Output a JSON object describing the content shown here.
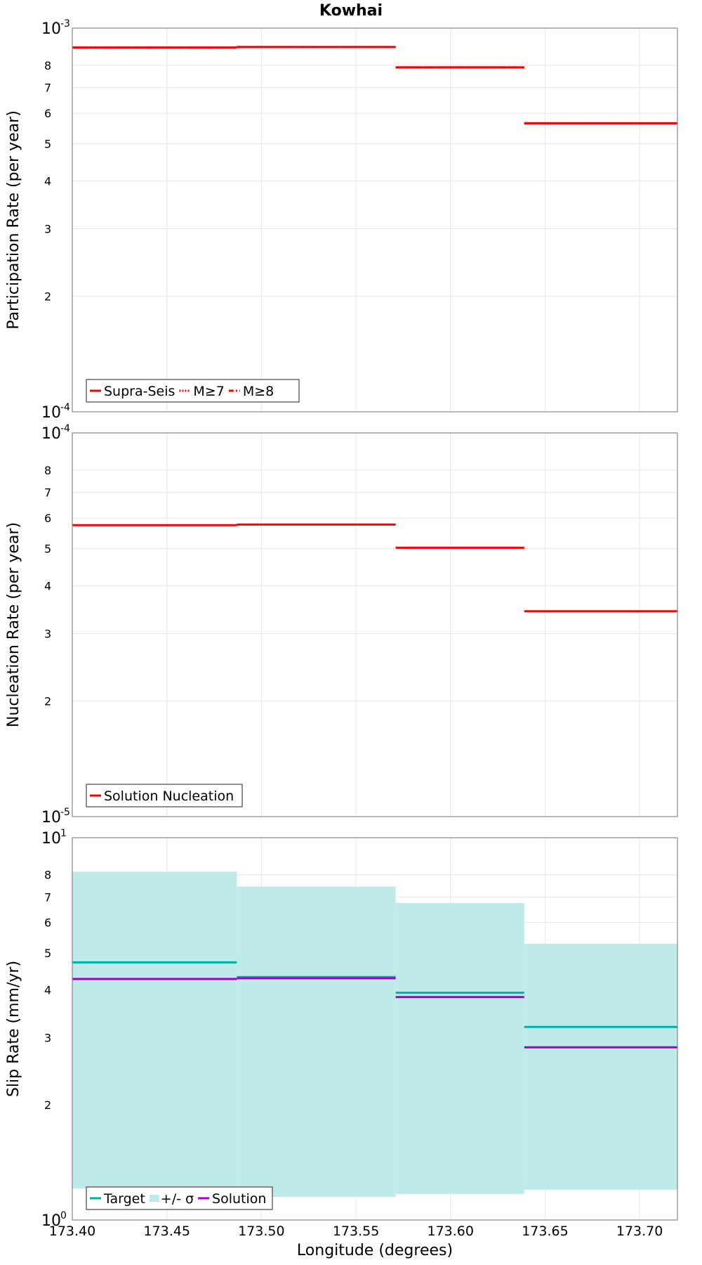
{
  "chart_data": [
    {
      "type": "line",
      "title": "Kowhai",
      "xlabel": "",
      "ylabel": "Participation Rate (per year)",
      "yscale": "log",
      "ylim": [
        0.0001,
        0.001
      ],
      "xlim": [
        173.4,
        173.72
      ],
      "grid": true,
      "legend_position": "bottom-left",
      "y_major_ticks": [
        {
          "value": 0.0001,
          "base": "10",
          "exp": "-4"
        },
        {
          "value": 0.001,
          "base": "10",
          "exp": "-3"
        }
      ],
      "y_minor_ticks": [
        {
          "value": 0.0002,
          "label": "2"
        },
        {
          "value": 0.0003,
          "label": "3"
        },
        {
          "value": 0.0004,
          "label": "4"
        },
        {
          "value": 0.0005,
          "label": "5"
        },
        {
          "value": 0.0006,
          "label": "6"
        },
        {
          "value": 0.0007,
          "label": "7"
        },
        {
          "value": 0.0008,
          "label": "8"
        }
      ],
      "series": [
        {
          "name": "Supra-Seis",
          "color": "#ff0000",
          "style": "solid",
          "segments": [
            {
              "x0": 173.4,
              "x1": 173.487,
              "y": 0.00089
            },
            {
              "x0": 173.487,
              "x1": 173.571,
              "y": 0.000893
            },
            {
              "x0": 173.571,
              "x1": 173.639,
              "y": 0.00079
            },
            {
              "x0": 173.639,
              "x1": 173.72,
              "y": 0.000565
            }
          ]
        },
        {
          "name": "M≥7",
          "color": "#ff0000",
          "style": "dotted",
          "segments": [
            {
              "x0": 173.4,
              "x1": 173.487,
              "y": 0.00089
            },
            {
              "x0": 173.487,
              "x1": 173.571,
              "y": 0.000893
            },
            {
              "x0": 173.571,
              "x1": 173.639,
              "y": 0.00079
            },
            {
              "x0": 173.639,
              "x1": 173.72,
              "y": 0.000565
            }
          ]
        },
        {
          "name": "M≥8",
          "color": "#ff0000",
          "style": "dashdot",
          "segments": [
            {
              "x0": 173.4,
              "x1": 173.487,
              "y": 0.00089
            },
            {
              "x0": 173.487,
              "x1": 173.571,
              "y": 0.000893
            },
            {
              "x0": 173.571,
              "x1": 173.639,
              "y": 0.00079
            },
            {
              "x0": 173.639,
              "x1": 173.72,
              "y": 0.000565
            }
          ]
        }
      ]
    },
    {
      "type": "line",
      "title": "",
      "xlabel": "",
      "ylabel": "Nucleation Rate (per year)",
      "yscale": "log",
      "ylim": [
        1e-05,
        0.0001
      ],
      "xlim": [
        173.4,
        173.72
      ],
      "grid": true,
      "legend_position": "bottom-left",
      "y_major_ticks": [
        {
          "value": 1e-05,
          "base": "10",
          "exp": "-5"
        },
        {
          "value": 0.0001,
          "base": "10",
          "exp": "-4"
        }
      ],
      "y_minor_ticks": [
        {
          "value": 2e-05,
          "label": "2"
        },
        {
          "value": 3e-05,
          "label": "3"
        },
        {
          "value": 4e-05,
          "label": "4"
        },
        {
          "value": 5e-05,
          "label": "5"
        },
        {
          "value": 6e-05,
          "label": "6"
        },
        {
          "value": 7e-05,
          "label": "7"
        },
        {
          "value": 8e-05,
          "label": "8"
        }
      ],
      "series": [
        {
          "name": "Solution Nucleation",
          "color": "#ff0000",
          "style": "solid",
          "segments": [
            {
              "x0": 173.4,
              "x1": 173.487,
              "y": 5.75e-05
            },
            {
              "x0": 173.487,
              "x1": 173.571,
              "y": 5.77e-05
            },
            {
              "x0": 173.571,
              "x1": 173.639,
              "y": 5.02e-05
            },
            {
              "x0": 173.639,
              "x1": 173.72,
              "y": 3.43e-05
            }
          ]
        }
      ]
    },
    {
      "type": "line",
      "title": "",
      "xlabel": "Longitude (degrees)",
      "ylabel": "Slip Rate (mm/yr)",
      "yscale": "log",
      "ylim": [
        1,
        10
      ],
      "xlim": [
        173.4,
        173.72
      ],
      "grid": true,
      "legend_position": "bottom-left",
      "x_ticks": [
        {
          "value": 173.4,
          "label": "173.40"
        },
        {
          "value": 173.45,
          "label": "173.45"
        },
        {
          "value": 173.5,
          "label": "173.50"
        },
        {
          "value": 173.55,
          "label": "173.55"
        },
        {
          "value": 173.6,
          "label": "173.60"
        },
        {
          "value": 173.65,
          "label": "173.65"
        },
        {
          "value": 173.7,
          "label": "173.70"
        }
      ],
      "y_major_ticks": [
        {
          "value": 1,
          "base": "10",
          "exp": "0"
        },
        {
          "value": 10,
          "base": "10",
          "exp": "1"
        }
      ],
      "y_minor_ticks": [
        {
          "value": 2,
          "label": "2"
        },
        {
          "value": 3,
          "label": "3"
        },
        {
          "value": 4,
          "label": "4"
        },
        {
          "value": 5,
          "label": "5"
        },
        {
          "value": 6,
          "label": "6"
        },
        {
          "value": 7,
          "label": "7"
        },
        {
          "value": 8,
          "label": "8"
        }
      ],
      "series": [
        {
          "name": "Target",
          "color": "#00b0a8",
          "style": "solid",
          "segments": [
            {
              "x0": 173.4,
              "x1": 173.487,
              "y": 4.72
            },
            {
              "x0": 173.487,
              "x1": 173.571,
              "y": 4.32
            },
            {
              "x0": 173.571,
              "x1": 173.639,
              "y": 3.93
            },
            {
              "x0": 173.639,
              "x1": 173.72,
              "y": 3.2
            }
          ]
        },
        {
          "name": "+/- σ",
          "color": "#bfeaea",
          "style": "band",
          "segments": [
            {
              "x0": 173.4,
              "x1": 173.487,
              "low": 1.21,
              "high": 8.15
            },
            {
              "x0": 173.487,
              "x1": 173.571,
              "low": 1.15,
              "high": 7.45
            },
            {
              "x0": 173.571,
              "x1": 173.639,
              "low": 1.17,
              "high": 6.75
            },
            {
              "x0": 173.639,
              "x1": 173.72,
              "low": 1.2,
              "high": 5.28
            }
          ]
        },
        {
          "name": "Solution",
          "color": "#a000c8",
          "style": "solid",
          "segments": [
            {
              "x0": 173.4,
              "x1": 173.487,
              "y": 4.27
            },
            {
              "x0": 173.487,
              "x1": 173.571,
              "y": 4.29
            },
            {
              "x0": 173.571,
              "x1": 173.639,
              "y": 3.83
            },
            {
              "x0": 173.639,
              "x1": 173.72,
              "y": 2.83
            }
          ]
        }
      ]
    }
  ]
}
